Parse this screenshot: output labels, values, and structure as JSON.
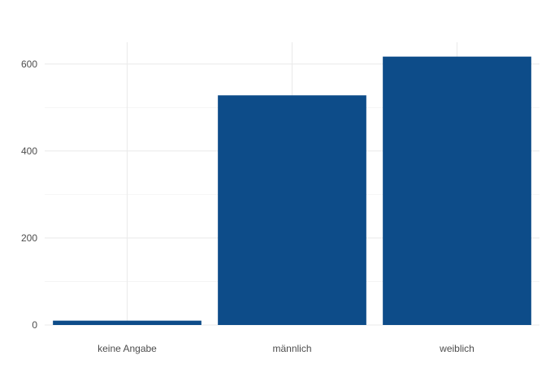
{
  "chart_data": {
    "type": "bar",
    "title": "",
    "xlabel": "",
    "ylabel": "",
    "categories": [
      "keine Angabe",
      "männlich",
      "weiblich"
    ],
    "values": [
      10,
      528,
      617
    ],
    "ylim": [
      0,
      650
    ],
    "yticks": [
      0,
      200,
      400,
      600
    ],
    "grid": true,
    "bar_color": "#0d4c89",
    "grid_color": "#ebebeb",
    "text_color": "#4d4d4d"
  }
}
